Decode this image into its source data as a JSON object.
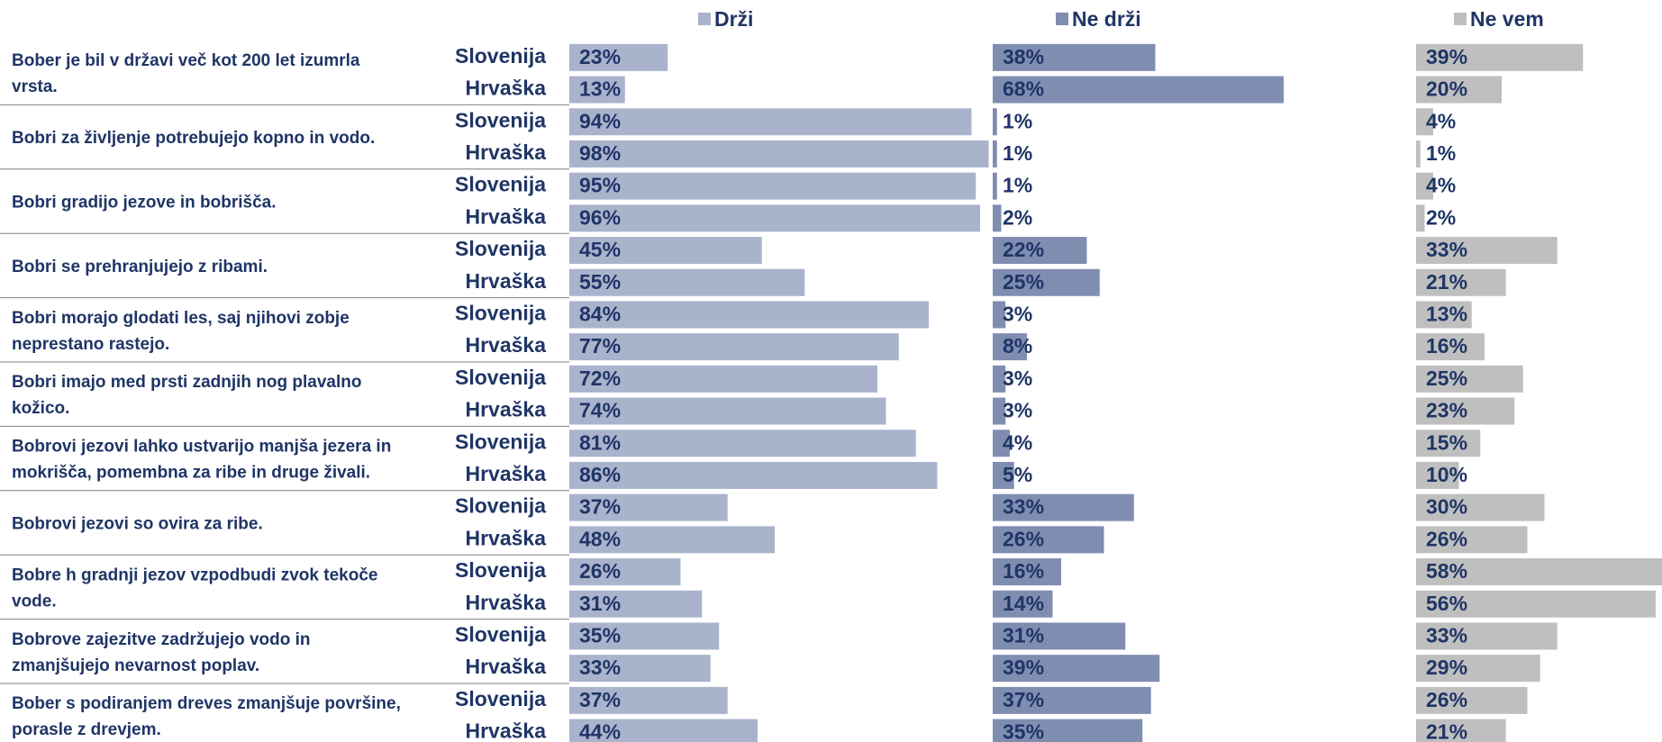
{
  "chart_data": {
    "type": "bar",
    "orientation": "horizontal",
    "layout": "three panels side by side, grouped rows of two countries per statement",
    "legend": {
      "placement": "top"
    },
    "series": [
      {
        "name": "Drži",
        "color": "#a9b3cc"
      },
      {
        "name": "Ne drži",
        "color": "#7f8db1"
      },
      {
        "name": "Ne vem",
        "color": "#bfbfbf"
      }
    ],
    "xlim": [
      0,
      100
    ],
    "value_suffix": "%",
    "questions": [
      {
        "text": [
          "Bober je bil v državi več kot 200 let izumrla",
          "vrsta."
        ],
        "rows": [
          {
            "country": "Slovenija",
            "values": [
              23,
              38,
              39
            ]
          },
          {
            "country": "Hrvaška",
            "values": [
              13,
              68,
              20
            ]
          }
        ]
      },
      {
        "text": [
          "Bobri za življenje potrebujejo kopno in vodo."
        ],
        "rows": [
          {
            "country": "Slovenija",
            "values": [
              94,
              1,
              4
            ]
          },
          {
            "country": "Hrvaška",
            "values": [
              98,
              1,
              1
            ]
          }
        ]
      },
      {
        "text": [
          "Bobri gradijo jezove in bobrišča."
        ],
        "rows": [
          {
            "country": "Slovenija",
            "values": [
              95,
              1,
              4
            ]
          },
          {
            "country": "Hrvaška",
            "values": [
              96,
              2,
              2
            ]
          }
        ]
      },
      {
        "text": [
          "Bobri se prehranjujejo z ribami."
        ],
        "rows": [
          {
            "country": "Slovenija",
            "values": [
              45,
              22,
              33
            ]
          },
          {
            "country": "Hrvaška",
            "values": [
              55,
              25,
              21
            ]
          }
        ]
      },
      {
        "text": [
          "Bobri morajo glodati les, saj njihovi zobje",
          "neprestano rastejo."
        ],
        "rows": [
          {
            "country": "Slovenija",
            "values": [
              84,
              3,
              13
            ]
          },
          {
            "country": "Hrvaška",
            "values": [
              77,
              8,
              16
            ]
          }
        ]
      },
      {
        "text": [
          "Bobri imajo med prsti zadnjih nog plavalno",
          "kožico."
        ],
        "rows": [
          {
            "country": "Slovenija",
            "values": [
              72,
              3,
              25
            ]
          },
          {
            "country": "Hrvaška",
            "values": [
              74,
              3,
              23
            ]
          }
        ]
      },
      {
        "text": [
          "Bobrovi jezovi lahko ustvarijo manjša jezera in",
          "mokrišča, pomembna za ribe in druge živali."
        ],
        "rows": [
          {
            "country": "Slovenija",
            "values": [
              81,
              4,
              15
            ]
          },
          {
            "country": "Hrvaška",
            "values": [
              86,
              5,
              10
            ]
          }
        ]
      },
      {
        "text": [
          "Bobrovi jezovi so ovira za ribe."
        ],
        "rows": [
          {
            "country": "Slovenija",
            "values": [
              37,
              33,
              30
            ]
          },
          {
            "country": "Hrvaška",
            "values": [
              48,
              26,
              26
            ]
          }
        ]
      },
      {
        "text": [
          "Bobre h gradnji jezov vzpodbudi zvok tekoče",
          "vode."
        ],
        "rows": [
          {
            "country": "Slovenija",
            "values": [
              26,
              16,
              58
            ]
          },
          {
            "country": "Hrvaška",
            "values": [
              31,
              14,
              56
            ]
          }
        ]
      },
      {
        "text": [
          "Bobrove zajezitve zadržujejo vodo in",
          "zmanjšujejo nevarnost poplav."
        ],
        "rows": [
          {
            "country": "Slovenija",
            "values": [
              35,
              31,
              33
            ]
          },
          {
            "country": "Hrvaška",
            "values": [
              33,
              39,
              29
            ]
          }
        ]
      },
      {
        "text": [
          "Bober s podiranjem dreves zmanjšuje površine,",
          "porasle z drevjem."
        ],
        "rows": [
          {
            "country": "Slovenija",
            "values": [
              37,
              37,
              26
            ]
          },
          {
            "country": "Hrvaška",
            "values": [
              44,
              35,
              21
            ]
          }
        ]
      }
    ]
  }
}
